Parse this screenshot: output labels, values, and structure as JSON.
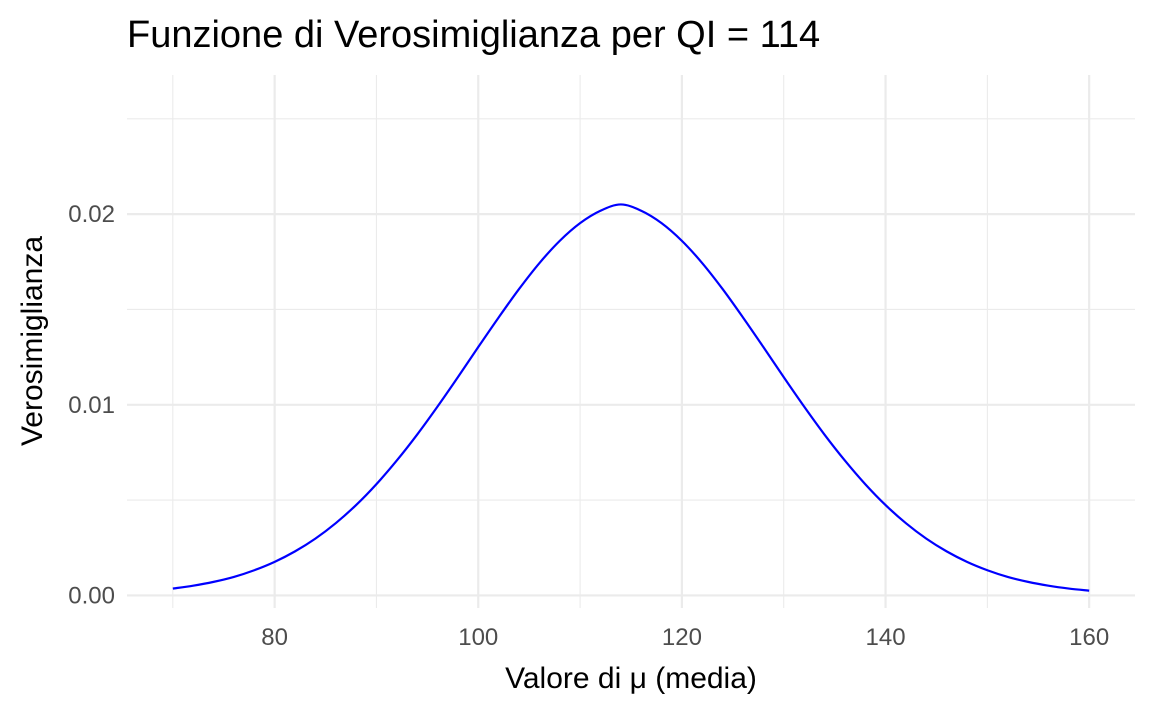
{
  "chart_data": {
    "type": "line",
    "title": "Funzione di Verosimiglianza per QI = 114",
    "xlabel": "Valore di μ (media)",
    "ylabel": "Verosimiglianza",
    "xlim": [
      65.5,
      164.5
    ],
    "ylim": [
      -0.00066,
      0.0273
    ],
    "x_ticks": [
      80,
      100,
      120,
      140,
      160
    ],
    "x_tick_labels": [
      "80",
      "100",
      "120",
      "140",
      "160"
    ],
    "y_ticks": [
      0.0,
      0.01,
      0.02
    ],
    "y_tick_labels": [
      "0.00",
      "0.01",
      "0.02"
    ],
    "x_minor_ticks": [
      70,
      90,
      110,
      130,
      150
    ],
    "y_minor_ticks": [
      0.005,
      0.015,
      0.025
    ],
    "grid": true,
    "legend": "none",
    "series": [
      {
        "color": "#0000ff",
        "x": [
          70,
          72,
          74,
          76,
          78,
          80,
          82,
          84,
          86,
          88,
          90,
          92,
          94,
          96,
          98,
          100,
          102,
          104,
          106,
          108,
          110,
          112,
          114,
          116,
          118,
          120,
          122,
          124,
          126,
          128,
          130,
          132,
          134,
          136,
          138,
          140,
          142,
          144,
          146,
          148,
          150,
          152,
          154,
          156,
          158,
          160
        ],
        "y": [
          0.00036,
          0.00051,
          0.00071,
          0.00097,
          0.00132,
          0.00176,
          0.00231,
          0.00298,
          0.00379,
          0.00474,
          0.00584,
          0.00708,
          0.00844,
          0.00991,
          0.01145,
          0.01303,
          0.01458,
          0.01607,
          0.01743,
          0.0186,
          0.01953,
          0.02018,
          0.02051,
          0.02018,
          0.01953,
          0.0186,
          0.01743,
          0.01607,
          0.01458,
          0.01303,
          0.01145,
          0.00991,
          0.00844,
          0.00708,
          0.00584,
          0.00474,
          0.00379,
          0.00298,
          0.00231,
          0.00176,
          0.00132,
          0.00097,
          0.00071,
          0.00051,
          0.00036,
          0.00025
        ]
      }
    ]
  }
}
